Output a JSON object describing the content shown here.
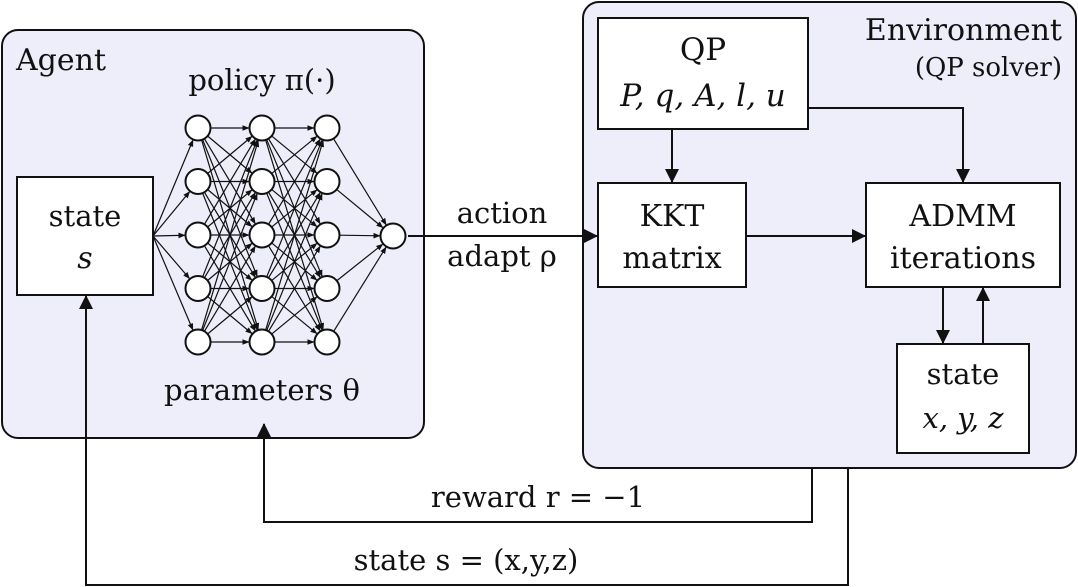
{
  "agent": {
    "title": "Agent",
    "policy_label": "policy π(·)",
    "parameters_label": "parameters θ",
    "state_box": {
      "line1": "state",
      "line2": "s"
    },
    "network": {
      "layers": [
        5,
        5,
        5,
        5,
        1
      ]
    }
  },
  "environment": {
    "title": "Environment",
    "subtitle": "(QP solver)",
    "qp_box": {
      "line1": "QP",
      "line2": "P, q, A, l, u"
    },
    "kkt_box": {
      "line1": "KKT",
      "line2": "matrix"
    },
    "admm_box": {
      "line1": "ADMM",
      "line2": "iterations"
    },
    "state_box": {
      "line1": "state",
      "line2": "x, y, z"
    }
  },
  "arrows": {
    "action_line1": "action",
    "action_line2": "adapt ρ",
    "reward_label": "reward r = −1",
    "state_label": "state s = (x,y,z)"
  },
  "colors": {
    "panel_fill": "#eeeefb",
    "stroke": "#111111",
    "box_fill": "#ffffff"
  }
}
